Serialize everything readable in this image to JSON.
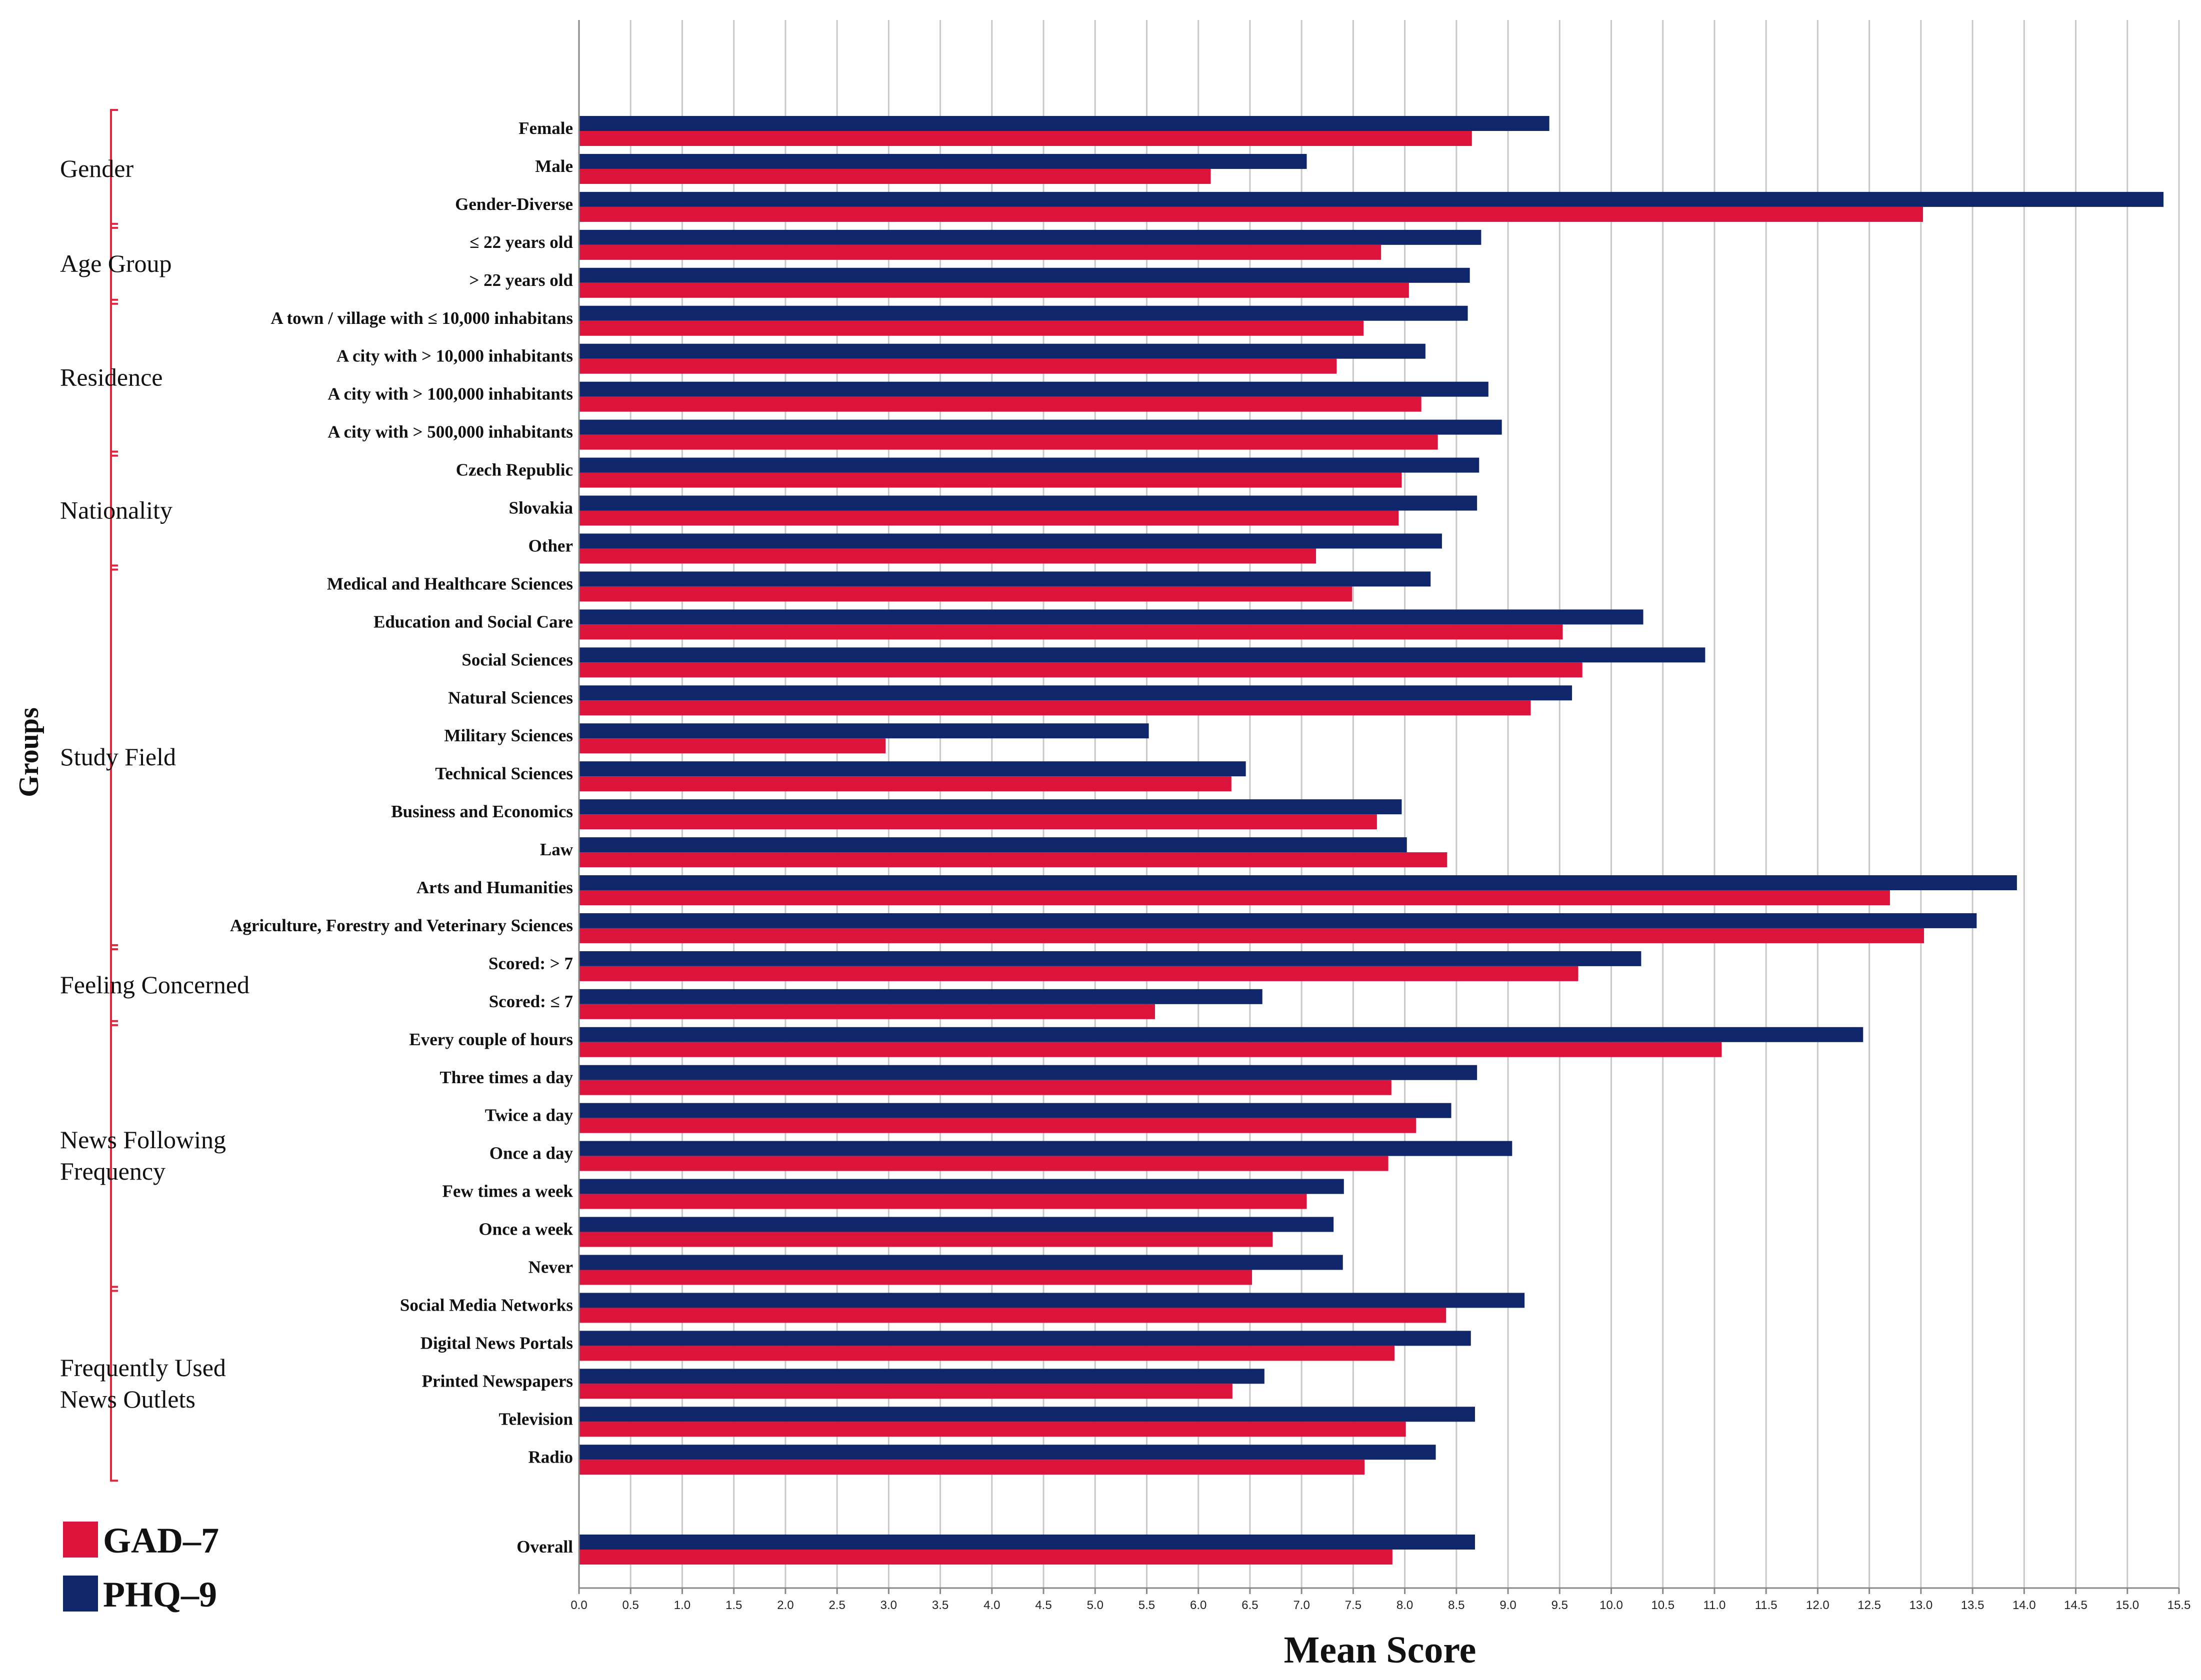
{
  "chart_data": {
    "type": "bar",
    "orientation": "horizontal",
    "xlabel": "Mean Score",
    "ylabel": "Groups",
    "xlim": [
      0,
      15.5
    ],
    "x_ticks": [
      "0.0",
      "0.5",
      "1.0",
      "1.5",
      "2.0",
      "2.5",
      "3.0",
      "3.5",
      "4.0",
      "4.5",
      "5.0",
      "5.5",
      "6.0",
      "6.5",
      "7.0",
      "7.5",
      "8.0",
      "8.5",
      "9.0",
      "9.5",
      "10.0",
      "10.5",
      "11.0",
      "11.5",
      "12.0",
      "12.5",
      "13.0",
      "13.5",
      "14.0",
      "14.5",
      "15.0",
      "15.5"
    ],
    "grid": true,
    "legend_position": "bottom-left",
    "series": [
      {
        "name": "GAD–7",
        "color": "#dc143c"
      },
      {
        "name": "PHQ–9",
        "color": "#10266b"
      }
    ],
    "groups": [
      {
        "name": "Gender",
        "lines": [
          "Gender"
        ]
      },
      {
        "name": "Age Group",
        "lines": [
          "Age Group"
        ]
      },
      {
        "name": "Residence",
        "lines": [
          "Residence"
        ]
      },
      {
        "name": "Nationality",
        "lines": [
          "Nationality"
        ]
      },
      {
        "name": "Study Field",
        "lines": [
          "Study Field"
        ]
      },
      {
        "name": "Feeling Concerned",
        "lines": [
          "Feeling Concerned"
        ]
      },
      {
        "name": "News Following Frequency",
        "lines": [
          "News Following",
          "Frequency"
        ]
      },
      {
        "name": "Frequently Used News Outlets",
        "lines": [
          "Frequently Used",
          "News Outlets"
        ]
      }
    ],
    "categories": [
      {
        "label": "Female",
        "group": 0,
        "gad7": 8.65,
        "phq9": 9.4
      },
      {
        "label": "Male",
        "group": 0,
        "gad7": 6.12,
        "phq9": 7.05
      },
      {
        "label": "Gender-Diverse",
        "group": 0,
        "gad7": 13.02,
        "phq9": 15.35
      },
      {
        "label": "≤ 22 years old",
        "group": 1,
        "gad7": 7.77,
        "phq9": 8.74
      },
      {
        "label": "> 22 years old",
        "group": 1,
        "gad7": 8.04,
        "phq9": 8.63
      },
      {
        "label": "A town / village with ≤ 10,000 inhabitans",
        "group": 2,
        "gad7": 7.6,
        "phq9": 8.61
      },
      {
        "label": "A city with > 10,000 inhabitants",
        "group": 2,
        "gad7": 7.34,
        "phq9": 8.2
      },
      {
        "label": "A city with > 100,000 inhabitants",
        "group": 2,
        "gad7": 8.16,
        "phq9": 8.81
      },
      {
        "label": "A city with > 500,000 inhabitants",
        "group": 2,
        "gad7": 8.32,
        "phq9": 8.94
      },
      {
        "label": "Czech Republic",
        "group": 3,
        "gad7": 7.97,
        "phq9": 8.72
      },
      {
        "label": "Slovakia",
        "group": 3,
        "gad7": 7.94,
        "phq9": 8.7
      },
      {
        "label": "Other",
        "group": 3,
        "gad7": 7.14,
        "phq9": 8.36
      },
      {
        "label": "Medical and Healthcare Sciences",
        "group": 4,
        "gad7": 7.49,
        "phq9": 8.25
      },
      {
        "label": "Education and Social Care",
        "group": 4,
        "gad7": 9.53,
        "phq9": 10.31
      },
      {
        "label": "Social Sciences",
        "group": 4,
        "gad7": 9.72,
        "phq9": 10.91
      },
      {
        "label": "Natural Sciences",
        "group": 4,
        "gad7": 9.22,
        "phq9": 9.62
      },
      {
        "label": "Military Sciences",
        "group": 4,
        "gad7": 2.97,
        "phq9": 5.52
      },
      {
        "label": "Technical Sciences",
        "group": 4,
        "gad7": 6.32,
        "phq9": 6.46
      },
      {
        "label": "Business and Economics",
        "group": 4,
        "gad7": 7.73,
        "phq9": 7.97
      },
      {
        "label": "Law",
        "group": 4,
        "gad7": 8.41,
        "phq9": 8.02
      },
      {
        "label": "Arts and Humanities",
        "group": 4,
        "gad7": 12.7,
        "phq9": 13.93
      },
      {
        "label": "Agriculture, Forestry and Veterinary Sciences",
        "group": 4,
        "gad7": 13.03,
        "phq9": 13.54
      },
      {
        "label": "Scored: > 7",
        "group": 5,
        "gad7": 9.68,
        "phq9": 10.29
      },
      {
        "label": "Scored: ≤ 7",
        "group": 5,
        "gad7": 5.58,
        "phq9": 6.62
      },
      {
        "label": "Every couple of hours",
        "group": 6,
        "gad7": 11.07,
        "phq9": 12.44
      },
      {
        "label": "Three times a day",
        "group": 6,
        "gad7": 7.87,
        "phq9": 8.7
      },
      {
        "label": "Twice a day",
        "group": 6,
        "gad7": 8.11,
        "phq9": 8.45
      },
      {
        "label": "Once a day",
        "group": 6,
        "gad7": 7.84,
        "phq9": 9.04
      },
      {
        "label": "Few times a week",
        "group": 6,
        "gad7": 7.05,
        "phq9": 7.41
      },
      {
        "label": "Once a week",
        "group": 6,
        "gad7": 6.72,
        "phq9": 7.31
      },
      {
        "label": "Never",
        "group": 6,
        "gad7": 6.52,
        "phq9": 7.4
      },
      {
        "label": "Social Media Networks",
        "group": 7,
        "gad7": 8.4,
        "phq9": 9.16
      },
      {
        "label": "Digital News Portals",
        "group": 7,
        "gad7": 7.9,
        "phq9": 8.64
      },
      {
        "label": "Printed Newspapers",
        "group": 7,
        "gad7": 6.33,
        "phq9": 6.64
      },
      {
        "label": "Television",
        "group": 7,
        "gad7": 8.01,
        "phq9": 8.68
      },
      {
        "label": "Radio",
        "group": 7,
        "gad7": 7.61,
        "phq9": 8.3
      },
      {
        "label": "Overall",
        "group": -1,
        "gad7": 7.88,
        "phq9": 8.68
      }
    ]
  }
}
